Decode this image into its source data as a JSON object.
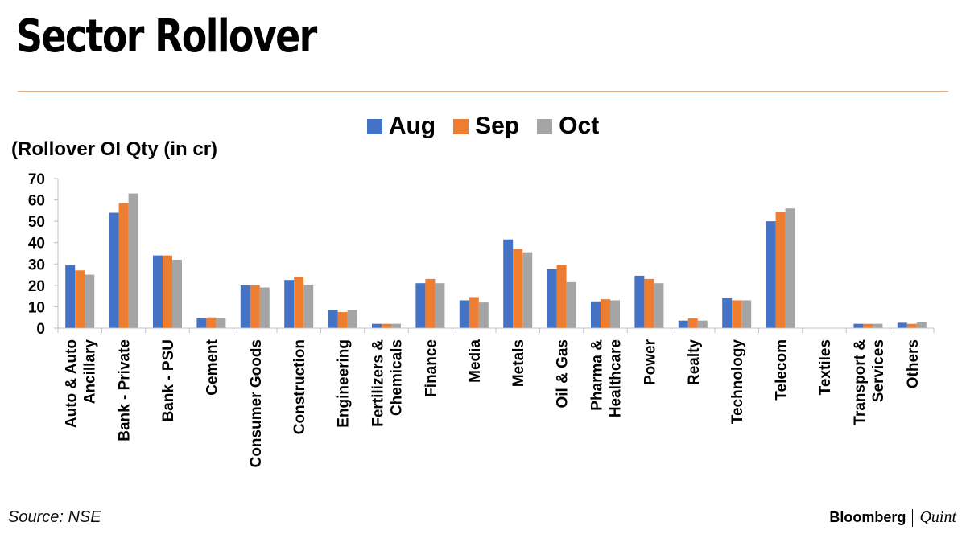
{
  "header": {
    "title": "Sector Rollover"
  },
  "footer": {
    "source": "Source: NSE",
    "brand_main": "Bloomberg",
    "brand_sub": "Quint"
  },
  "colors": {
    "Aug": "#4472c4",
    "Sep": "#ed7d31",
    "Oct": "#a5a5a5",
    "rule": "#e1a97e"
  },
  "chart_data": {
    "type": "bar",
    "ylabel": "(Rollover OI Qty (in cr)",
    "xlabel": "",
    "ylim": [
      0,
      70
    ],
    "yticks": [
      0,
      10,
      20,
      30,
      40,
      50,
      60,
      70
    ],
    "grid": false,
    "legend_position": "top-center",
    "categories": [
      "Auto & Auto Ancillary",
      "Bank - Private",
      "Bank - PSU",
      "Cement",
      "Consumer Goods",
      "Construction",
      "Engineering",
      "Fertilizers & Chemicals",
      "Finance",
      "Media",
      "Metals",
      "Oil & Gas",
      "Pharma & Healthcare",
      "Power",
      "Realty",
      "Technology",
      "Telecom",
      "Textiles",
      "Transport & Services",
      "Others"
    ],
    "category_lines": [
      [
        "Auto & Auto",
        "Ancillary"
      ],
      [
        "Bank - Private"
      ],
      [
        "Bank - PSU"
      ],
      [
        "Cement"
      ],
      [
        "Consumer Goods"
      ],
      [
        "Construction"
      ],
      [
        "Engineering"
      ],
      [
        "Fertilizers &",
        "Chemicals"
      ],
      [
        "Finance"
      ],
      [
        "Media"
      ],
      [
        "Metals"
      ],
      [
        "Oil & Gas"
      ],
      [
        "Pharma &",
        "Healthcare"
      ],
      [
        "Power"
      ],
      [
        "Realty"
      ],
      [
        "Technology"
      ],
      [
        "Telecom"
      ],
      [
        "Textiles"
      ],
      [
        "Transport &",
        "Services"
      ],
      [
        "Others"
      ]
    ],
    "series": [
      {
        "name": "Aug",
        "values": [
          29.5,
          54,
          34,
          4.5,
          20,
          22.5,
          8.5,
          2,
          21,
          13,
          41.5,
          27.5,
          12.5,
          24.5,
          3.5,
          14,
          50,
          0,
          2,
          2.5
        ]
      },
      {
        "name": "Sep",
        "values": [
          27,
          58.5,
          34,
          5,
          20,
          24,
          7.5,
          2,
          23,
          14.5,
          37,
          29.5,
          13.5,
          23,
          4.5,
          13,
          54.5,
          0,
          2,
          2
        ]
      },
      {
        "name": "Oct",
        "values": [
          25,
          63,
          32,
          4.5,
          19,
          20,
          8.5,
          2,
          21,
          12,
          35.5,
          21.5,
          13,
          21,
          3.5,
          13,
          56,
          0,
          2,
          3
        ]
      }
    ]
  }
}
